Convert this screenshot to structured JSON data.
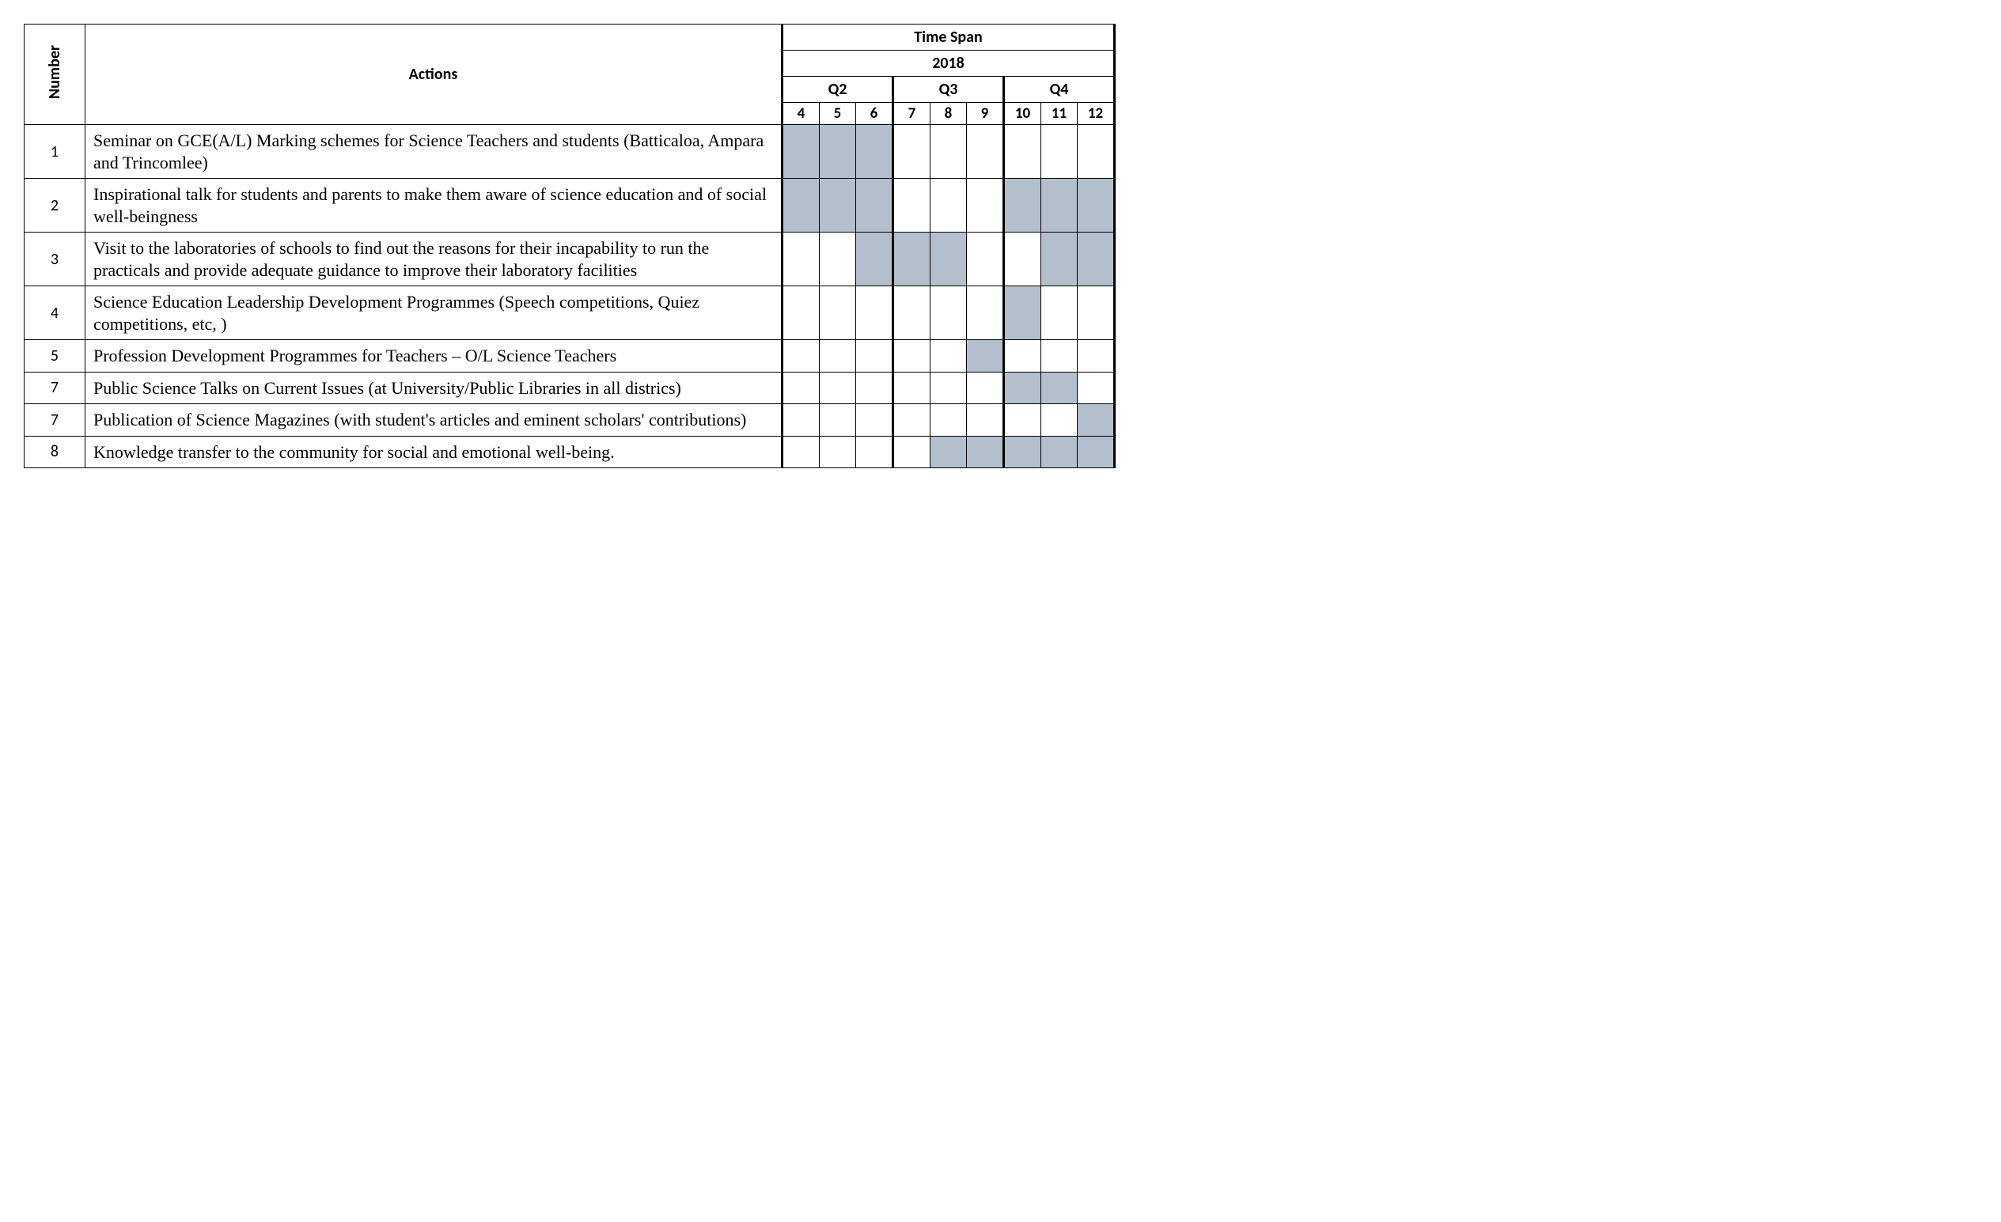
{
  "headers": {
    "number": "Number",
    "actions": "Actions",
    "timespan": "Time Span",
    "year": "2018",
    "quarters": [
      "Q2",
      "Q3",
      "Q4"
    ],
    "months": [
      "4",
      "5",
      "6",
      "7",
      "8",
      "9",
      "10",
      "11",
      "12"
    ]
  },
  "fill_color": "#b4bfce",
  "border_color": "#000000",
  "background_color": "#ffffff",
  "rows": [
    {
      "num": "1",
      "action": "Seminar on GCE(A/L) Marking schemes for Science Teachers and students (Batticaloa, Ampara and Trincomlee)",
      "months": [
        1,
        1,
        1,
        0,
        0,
        0,
        0,
        0,
        0
      ]
    },
    {
      "num": "2",
      "action": "Inspirational talk for students and parents to make them aware of science education and of social well-beingness",
      "months": [
        1,
        1,
        1,
        0,
        0,
        0,
        1,
        1,
        1
      ]
    },
    {
      "num": "3",
      "action": "Visit to the laboratories of schools to find out the reasons for their incapability to run the practicals and provide adequate guidance to improve their laboratory facilities",
      "months": [
        0,
        0,
        1,
        1,
        1,
        0,
        0,
        1,
        1
      ]
    },
    {
      "num": "4",
      "action": "Science Education Leadership Development Programmes (Speech competitions, Quiez competitions, etc, )",
      "months": [
        0,
        0,
        0,
        0,
        0,
        0,
        1,
        0,
        0
      ]
    },
    {
      "num": "5",
      "action": "Profession Development Programmes for Teachers – O/L Science Teachers",
      "months": [
        0,
        0,
        0,
        0,
        0,
        1,
        0,
        0,
        0
      ]
    },
    {
      "num": "7",
      "action": "Public Science Talks on Current Issues (at University/Public Libraries in all districs)",
      "months": [
        0,
        0,
        0,
        0,
        0,
        0,
        1,
        1,
        0
      ]
    },
    {
      "num": "7",
      "action": "Publication of Science Magazines (with student's articles and eminent scholars' contributions)",
      "months": [
        0,
        0,
        0,
        0,
        0,
        0,
        0,
        0,
        1
      ]
    },
    {
      "num": "8",
      "action": "Knowledge transfer to the community for social and emotional well-being.",
      "months": [
        0,
        0,
        0,
        0,
        1,
        1,
        1,
        1,
        1
      ]
    }
  ]
}
